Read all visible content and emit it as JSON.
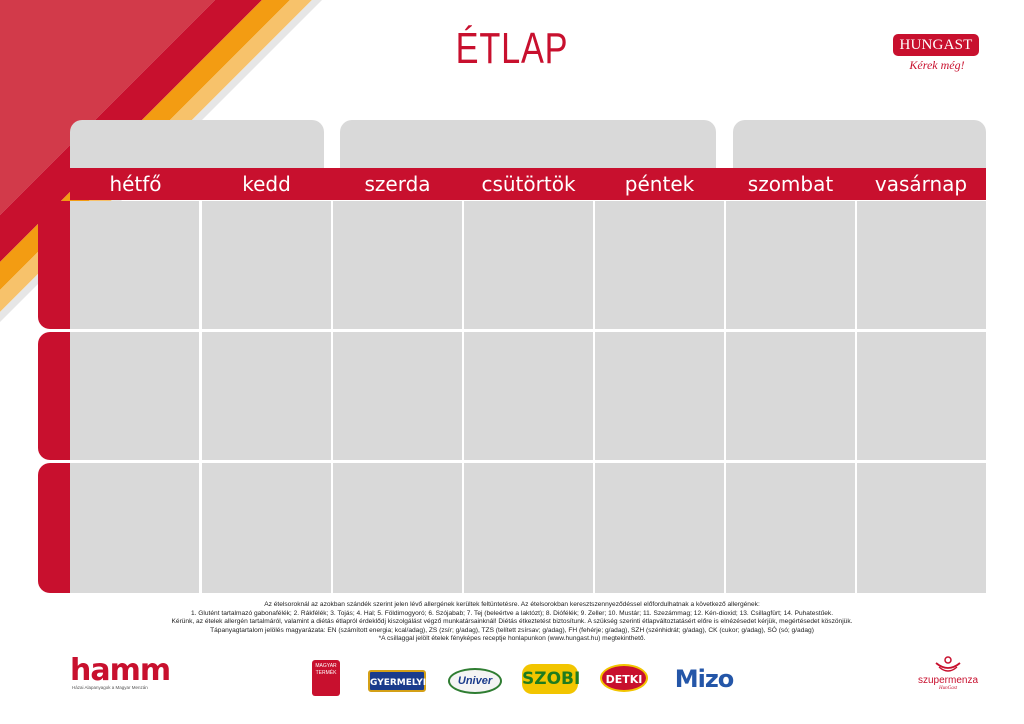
{
  "header": {
    "title": "ÉTLAP",
    "logo_brand": "HUNGAST",
    "logo_tagline": "Kérek még!"
  },
  "days": [
    "hétfő",
    "kedd",
    "szerda",
    "csütörtök",
    "péntek",
    "szombat",
    "vasárnap"
  ],
  "rows": 3,
  "footer": {
    "lines": [
      "Az ételsoroknál az azokban szándék szerint jelen lévő allergének kerültek feltüntetésre. Az ételsorokban keresztszennyeződéssel előfordulhatnak a következő allergének:",
      "1. Glutént tartalmazó gabonafélék; 2. Rákfélék; 3. Tojás; 4. Hal; 5. Földimogyoró; 6. Szójabab; 7. Tej (beleértve a laktózt); 8. Diófélék; 9. Zeller; 10. Mustár; 11. Szezámmag; 12. Kén-dioxid; 13. Csillagfürt; 14. Puhatestűek.",
      "Kérünk, az ételek allergén tartalmáról, valamint a diétás étlapról érdeklődj kiszolgálást végző munkatársainknál! Diétás étkeztetést biztosítunk. A szükség szerinti étlapváltoztatásért előre is elnézésedet kérjük, megértésedet köszönjük.",
      "Tápanyagtartalom jelölés magyarázata: EN (számított energia; kcal/adag), ZS (zsír; g/adag), TZS (telített zsírsav; g/adag), FH (fehérje; g/adag), SZH (szénhidrát; g/adag), CK (cukor; g/adag), SÓ (só; g/adag)",
      "*A csillaggal jelölt ételek fényképes receptje honlapunkon (www.hungast.hu) megtekinthető."
    ]
  },
  "logos": {
    "hamm": "hamm",
    "hamm_sub": "Házai Alapanyagok a Magyar Menzán",
    "magyar": "MAGYAR TERMÉK",
    "gyermelyi": "GYERMELYI",
    "univer": "Univer",
    "szobi": "SZOBI",
    "detki": "DETKI",
    "mizo": "Mizo",
    "szupermenza": "szupermenza",
    "szupermenza_sub": "HunGast"
  },
  "colors": {
    "accent_red": "#c8102e",
    "grid_grey": "#d9d9d9",
    "stripe_orange": "#f39c12",
    "stripe_light_orange": "#f7c26b"
  }
}
